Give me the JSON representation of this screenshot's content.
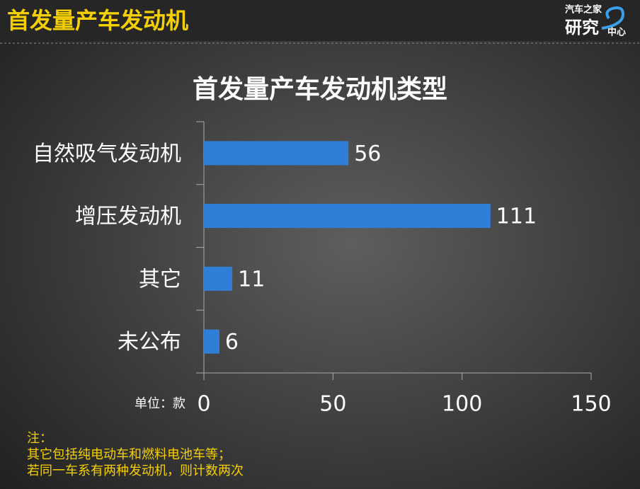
{
  "header": {
    "title": "首发量产车发动机"
  },
  "logo": {
    "top": "汽车之家",
    "main": "研究",
    "side": "中心"
  },
  "chart_data": {
    "type": "barh",
    "title": "首发量产车发动机类型",
    "categories": [
      "自然吸气发动机",
      "增压发动机",
      "其它",
      "未公布"
    ],
    "values": [
      56,
      111,
      11,
      6
    ],
    "color": "#2f7fd9",
    "xlim": [
      0,
      150
    ],
    "xticks": [
      0,
      50,
      100,
      150
    ],
    "unit_label": "单位：款"
  },
  "notes": [
    "注：",
    "其它包括纯电动车和燃料电池车等；",
    "若同一车系有两种发动机，则计数两次"
  ]
}
